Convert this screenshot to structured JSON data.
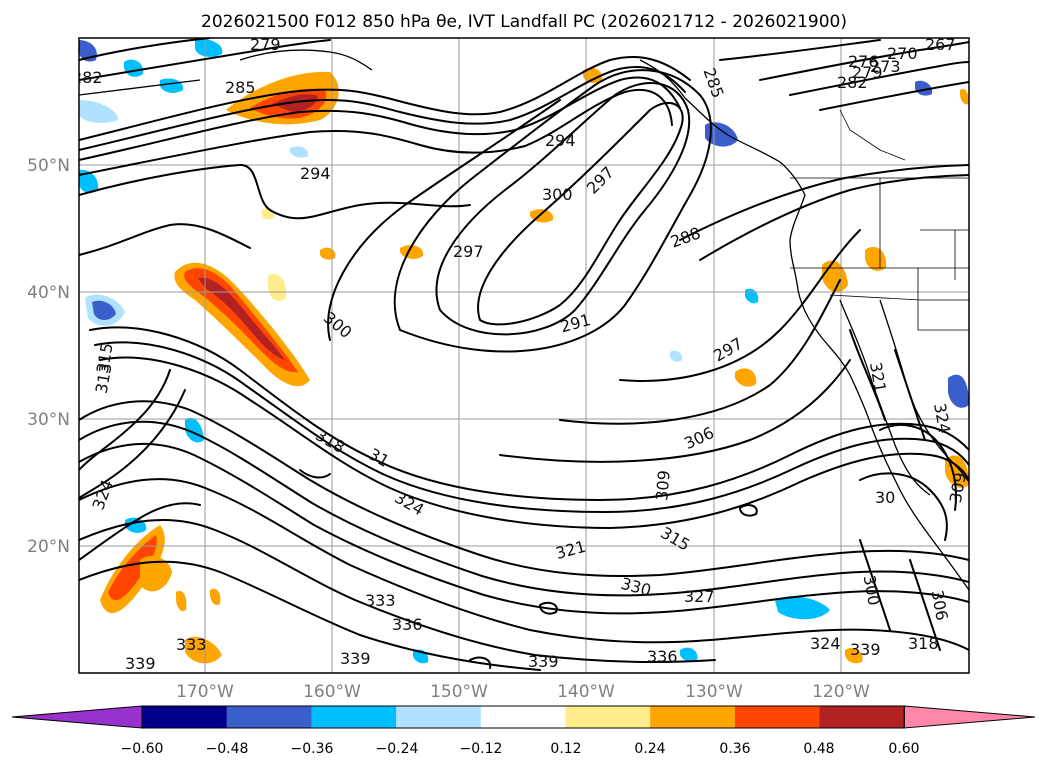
{
  "title": "2026021500 F012 850 hPa θe, IVT Landfall PC (2026021712 - 2026021900)",
  "lon_labels": [
    "170°W",
    "160°W",
    "150°W",
    "140°W",
    "130°W",
    "120°W"
  ],
  "lat_labels": [
    "50°N",
    "40°N",
    "30°N",
    "20°N"
  ],
  "contour_labels": [
    "279",
    "282",
    "285",
    "294",
    "294",
    "297",
    "300",
    "297",
    "285",
    "270",
    "267",
    "276",
    "273",
    "279",
    "282",
    "288",
    "291",
    "297",
    "300",
    "313",
    "315",
    "306",
    "309",
    "318",
    "31",
    "324",
    "324",
    "321",
    "315",
    "330",
    "327",
    "333",
    "336",
    "333",
    "339",
    "339",
    "339",
    "336",
    "339",
    "324",
    "318",
    "300",
    "306",
    "30",
    "309",
    "321",
    "324"
  ],
  "colorbar": {
    "ticks": [
      "−0.60",
      "−0.48",
      "−0.36",
      "−0.24",
      "−0.12",
      "0.12",
      "0.24",
      "0.36",
      "0.48",
      "0.60"
    ],
    "colors": [
      "#9932cc",
      "#00008b",
      "#3a5fcd",
      "#00bfff",
      "#b0e2ff",
      "#ffffff",
      "#ffec8b",
      "#ffa500",
      "#ff4500",
      "#b22222",
      "#ff88aa"
    ]
  }
}
